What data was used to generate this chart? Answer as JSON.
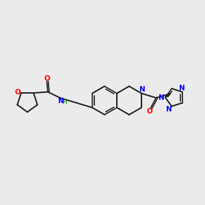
{
  "bg_color": "#ebebeb",
  "bond_color": "#1a1a1a",
  "nitrogen_color": "#0000ff",
  "oxygen_color": "#ff0000",
  "nh_color": "#008000",
  "figsize": [
    3.0,
    3.0
  ],
  "dpi": 100,
  "xlim": [
    0,
    10
  ],
  "ylim": [
    1,
    9
  ]
}
